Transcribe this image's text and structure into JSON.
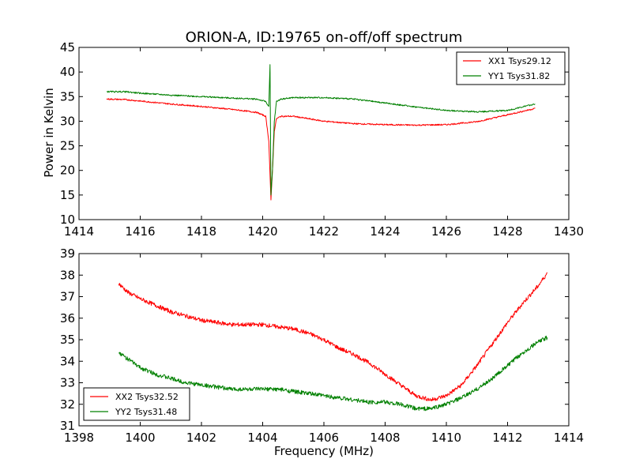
{
  "figure": {
    "title": "ORION-A, ID:19765 on-off/off spectrum",
    "xlabel": "Frequency (MHz)",
    "ylabel": "Power in Kelvin"
  },
  "chart_data": [
    {
      "type": "line",
      "title": "ORION-A, ID:19765 on-off/off spectrum",
      "ylabel": "Power in Kelvin",
      "xlabel": "",
      "xlim": [
        1414,
        1430
      ],
      "ylim": [
        10,
        45
      ],
      "xticks": [
        1414,
        1416,
        1418,
        1420,
        1422,
        1424,
        1426,
        1428,
        1430
      ],
      "yticks": [
        10,
        15,
        20,
        25,
        30,
        35,
        40,
        45
      ],
      "grid": false,
      "legend": "top-right",
      "series": [
        {
          "name": "XX1 Tsys29.12",
          "color": "#ff0000",
          "x": [
            1414.9,
            1415.5,
            1416,
            1417,
            1418,
            1419,
            1419.8,
            1420.1,
            1420.2,
            1420.27,
            1420.32,
            1420.38,
            1420.45,
            1420.6,
            1421,
            1422,
            1423,
            1424,
            1425,
            1426,
            1427,
            1428,
            1428.9
          ],
          "y": [
            34.5,
            34.4,
            34.1,
            33.5,
            33.0,
            32.4,
            31.8,
            31.0,
            26.0,
            14.0,
            20.0,
            28.0,
            30.5,
            31.0,
            31.0,
            30.0,
            29.5,
            29.3,
            29.2,
            29.3,
            29.9,
            31.3,
            32.6
          ]
        },
        {
          "name": "YY1 Tsys31.82",
          "color": "#008000",
          "x": [
            1414.9,
            1415.5,
            1416,
            1417,
            1418,
            1419,
            1419.8,
            1420.1,
            1420.2,
            1420.24,
            1420.27,
            1420.32,
            1420.38,
            1420.45,
            1420.6,
            1421,
            1422,
            1423,
            1424,
            1425,
            1426,
            1427,
            1428,
            1428.9
          ],
          "y": [
            36.0,
            36.0,
            35.7,
            35.3,
            35.0,
            34.7,
            34.5,
            34.0,
            33.0,
            41.5,
            15.0,
            20.0,
            30.0,
            34.0,
            34.5,
            34.8,
            34.8,
            34.5,
            33.7,
            32.9,
            32.2,
            31.9,
            32.2,
            33.5
          ]
        }
      ]
    },
    {
      "type": "line",
      "title": "",
      "xlabel": "Frequency (MHz)",
      "ylabel": "",
      "xlim": [
        1398,
        1414
      ],
      "ylim": [
        31,
        39
      ],
      "xticks": [
        1398,
        1400,
        1402,
        1404,
        1406,
        1408,
        1410,
        1412,
        1414
      ],
      "yticks": [
        31,
        32,
        33,
        34,
        35,
        36,
        37,
        38,
        39
      ],
      "grid": false,
      "legend": "bottom-left",
      "series": [
        {
          "name": "XX2 Tsys32.52",
          "color": "#ff0000",
          "x": [
            1399.3,
            1399.6,
            1400,
            1400.5,
            1401,
            1401.5,
            1402,
            1402.5,
            1403,
            1403.5,
            1404,
            1404.5,
            1405,
            1405.5,
            1406,
            1406.5,
            1407,
            1407.5,
            1408,
            1408.5,
            1409,
            1409.5,
            1410,
            1410.5,
            1411,
            1411.5,
            1412,
            1412.5,
            1413,
            1413.3
          ],
          "y": [
            37.6,
            37.2,
            36.9,
            36.6,
            36.3,
            36.1,
            35.9,
            35.8,
            35.7,
            35.7,
            35.7,
            35.6,
            35.5,
            35.3,
            35.0,
            34.6,
            34.3,
            33.9,
            33.4,
            32.9,
            32.4,
            32.2,
            32.4,
            32.9,
            33.8,
            34.8,
            35.8,
            36.7,
            37.5,
            38.1
          ]
        },
        {
          "name": "YY2 Tsys31.48",
          "color": "#008000",
          "x": [
            1399.3,
            1399.6,
            1400,
            1400.5,
            1401,
            1401.5,
            1402,
            1402.5,
            1403,
            1403.5,
            1404,
            1404.5,
            1405,
            1405.5,
            1406,
            1406.5,
            1407,
            1407.5,
            1408,
            1408.5,
            1409,
            1409.5,
            1410,
            1410.5,
            1411,
            1411.5,
            1412,
            1412.5,
            1413,
            1413.3
          ],
          "y": [
            34.4,
            34.1,
            33.7,
            33.4,
            33.2,
            33.0,
            32.9,
            32.8,
            32.7,
            32.7,
            32.7,
            32.7,
            32.6,
            32.5,
            32.4,
            32.3,
            32.2,
            32.1,
            32.1,
            32.0,
            31.8,
            31.8,
            32.0,
            32.3,
            32.7,
            33.2,
            33.8,
            34.4,
            34.9,
            35.1
          ]
        }
      ]
    }
  ]
}
